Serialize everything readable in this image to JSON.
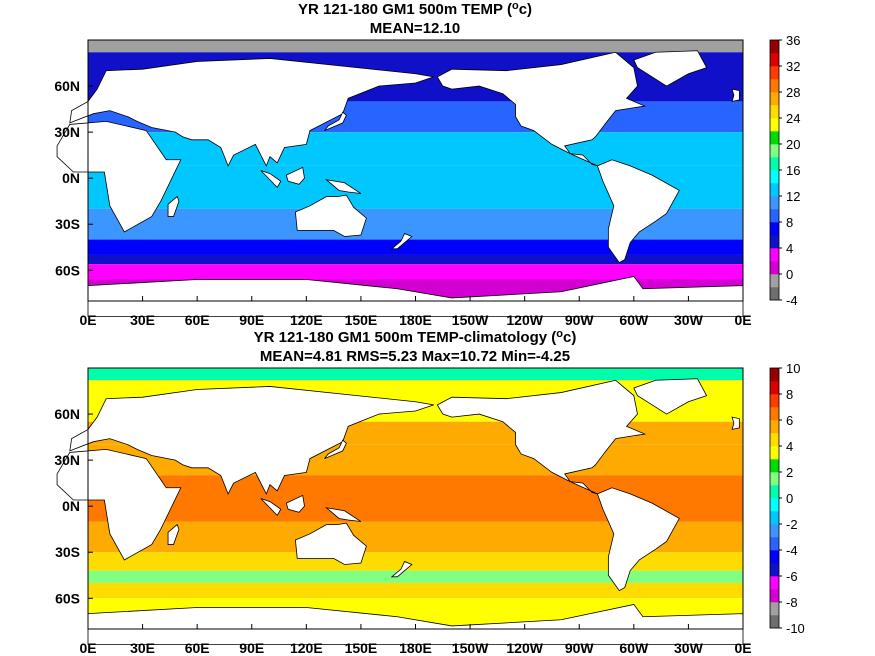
{
  "chart_data": [
    {
      "type": "heatmap",
      "title": "YR 121-180 GM1 500m TEMP (",
      "title_unit": "o",
      "title_end": "c)",
      "subtitle": "MEAN=12.10",
      "xticks": [
        "0E",
        "30E",
        "60E",
        "90E",
        "120E",
        "150E",
        "180E",
        "150W",
        "120W",
        "90W",
        "60W",
        "30W",
        "0E"
      ],
      "yticks": [
        "60N",
        "30N",
        "0N",
        "30S",
        "60S"
      ],
      "ytick_lats": [
        60,
        30,
        0,
        -30,
        -60
      ],
      "xlim_lon": [
        0,
        360
      ],
      "ylim_lat": [
        -80,
        90
      ],
      "colorbar": {
        "ticks": [
          "36",
          "32",
          "28",
          "24",
          "20",
          "16",
          "12",
          "8",
          "4",
          "0",
          "-4"
        ],
        "vmin": -4,
        "vmax": 36,
        "step": 2,
        "colors": [
          "#6e6e6e",
          "#a0a0a0",
          "#d200d2",
          "#ff00ff",
          "#1010c8",
          "#0000ff",
          "#2864ff",
          "#3c96ff",
          "#00c8ff",
          "#00ffff",
          "#00ffaa",
          "#80ff80",
          "#00dc00",
          "#ffff00",
          "#ffdc00",
          "#ffaa00",
          "#ff7800",
          "#ff3c00",
          "#dc0000",
          "#960000"
        ]
      },
      "field_zones": [
        {
          "lat_from": 90,
          "lat_to": 82,
          "value": -1
        },
        {
          "lat_from": 82,
          "lat_to": 50,
          "value": 5
        },
        {
          "lat_from": 50,
          "lat_to": 30,
          "value": 9
        },
        {
          "lat_from": 30,
          "lat_to": 8,
          "value": 13
        },
        {
          "lat_from": 8,
          "lat_to": -20,
          "value": 13
        },
        {
          "lat_from": -20,
          "lat_to": -40,
          "value": 11
        },
        {
          "lat_from": -40,
          "lat_to": -50,
          "value": 7
        },
        {
          "lat_from": -50,
          "lat_to": -56,
          "value": 5
        },
        {
          "lat_from": -56,
          "lat_to": -66,
          "value": 3
        },
        {
          "lat_from": -66,
          "lat_to": -80,
          "value": 1
        }
      ]
    },
    {
      "type": "heatmap",
      "title": "YR 121-180 GM1 500m TEMP-climatology (",
      "title_unit": "o",
      "title_end": "c)",
      "subtitle": "MEAN=4.81   RMS=5.23   Max=10.72   Min=-4.25",
      "xticks": [
        "0E",
        "30E",
        "60E",
        "90E",
        "120E",
        "150E",
        "180E",
        "150W",
        "120W",
        "90W",
        "60W",
        "30W",
        "0E"
      ],
      "yticks": [
        "60N",
        "30N",
        "0N",
        "30S",
        "60S"
      ],
      "ytick_lats": [
        60,
        30,
        0,
        -30,
        -60
      ],
      "xlim_lon": [
        0,
        360
      ],
      "ylim_lat": [
        -80,
        90
      ],
      "colorbar": {
        "ticks": [
          "10",
          "8",
          "6",
          "4",
          "2",
          "0",
          "-2",
          "-4",
          "-6",
          "-8",
          "-10"
        ],
        "vmin": -10,
        "vmax": 10,
        "step": 1,
        "colors": [
          "#6e6e6e",
          "#a0a0a0",
          "#d200d2",
          "#ff00ff",
          "#1010c8",
          "#0000ff",
          "#2864ff",
          "#3c96ff",
          "#00c8ff",
          "#00ffff",
          "#00ffaa",
          "#80ff80",
          "#00dc00",
          "#ffff00",
          "#ffdc00",
          "#ffaa00",
          "#ff7800",
          "#ff3c00",
          "#dc0000",
          "#960000"
        ]
      },
      "field_zones": [
        {
          "lat_from": 90,
          "lat_to": 82,
          "value": 0.5
        },
        {
          "lat_from": 82,
          "lat_to": 55,
          "value": 3
        },
        {
          "lat_from": 55,
          "lat_to": 40,
          "value": 5
        },
        {
          "lat_from": 40,
          "lat_to": 20,
          "value": 5
        },
        {
          "lat_from": 20,
          "lat_to": -10,
          "value": 6.5
        },
        {
          "lat_from": -10,
          "lat_to": -30,
          "value": 5.5
        },
        {
          "lat_from": -30,
          "lat_to": -42,
          "value": 4.5
        },
        {
          "lat_from": -42,
          "lat_to": -50,
          "value": 1.5
        },
        {
          "lat_from": -50,
          "lat_to": -60,
          "value": 4.5
        },
        {
          "lat_from": -60,
          "lat_to": -80,
          "value": 3
        }
      ]
    }
  ]
}
